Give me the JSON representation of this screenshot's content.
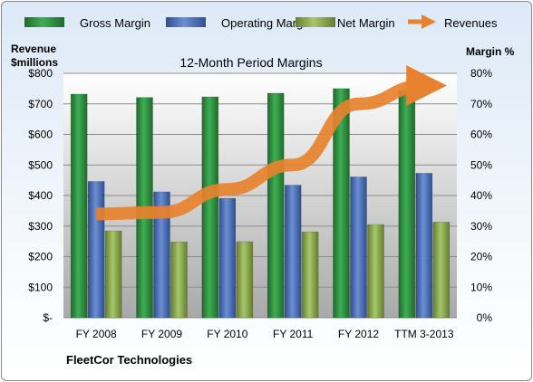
{
  "chart_data": {
    "type": "bar",
    "title": "12-Month Period Margins",
    "left_axis_label_lines": [
      "Revenue",
      "$millions"
    ],
    "right_axis_label": "Margin %",
    "categories": [
      "FY 2008",
      "FY 2009",
      "FY 2010",
      "FY 2011",
      "FY 2012",
      "TTM 3-2013"
    ],
    "left_ticks": [
      "$-",
      "$100",
      "$200",
      "$300",
      "$400",
      "$500",
      "$600",
      "$700",
      "$800"
    ],
    "right_ticks": [
      "0%",
      "10%",
      "20%",
      "30%",
      "40%",
      "50%",
      "60%",
      "70%",
      "80%"
    ],
    "ylim_left": [
      0,
      800
    ],
    "ylim_right": [
      0,
      80
    ],
    "grid": true,
    "legend_position": "top",
    "series": [
      {
        "name": "Gross Margin",
        "kind": "bar",
        "axis": "right",
        "color": "#2e8b3c",
        "values": [
          73.2,
          72.1,
          72.3,
          73.5,
          75.0,
          74.5
        ]
      },
      {
        "name": "Operating Margin",
        "kind": "bar",
        "axis": "right",
        "color": "#4a70b8",
        "values": [
          44.6,
          41.2,
          39.1,
          43.4,
          46.1,
          47.3
        ]
      },
      {
        "name": "Net Margin",
        "kind": "bar",
        "axis": "right",
        "color": "#8aab4a",
        "values": [
          28.4,
          24.8,
          24.9,
          28.1,
          30.5,
          31.3
        ]
      },
      {
        "name": "Revenues",
        "kind": "line",
        "axis": "left",
        "color": "#e8822e",
        "values": [
          340,
          345,
          420,
          500,
          700,
          760
        ]
      }
    ]
  },
  "footer": {
    "company": "FleetCor Technologies"
  }
}
